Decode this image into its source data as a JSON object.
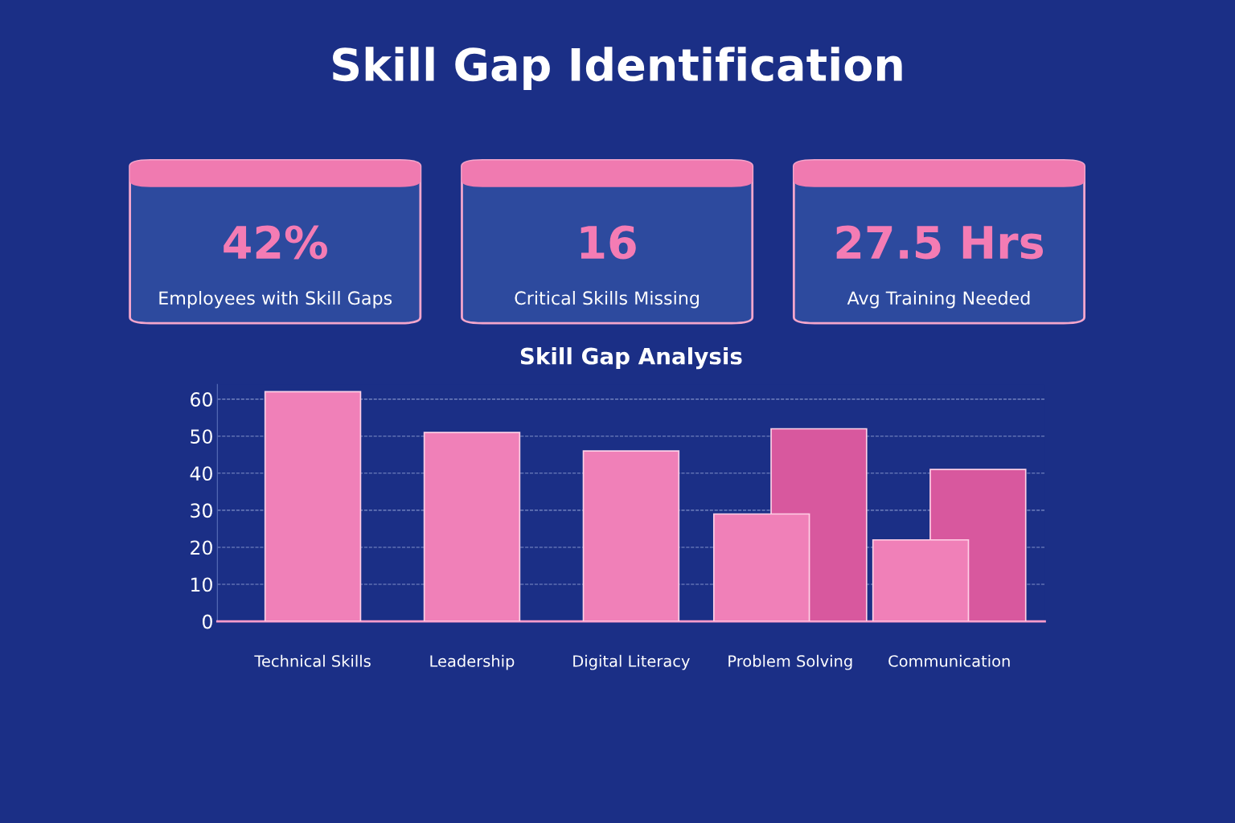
{
  "chart_data": [
    {
      "type": "other",
      "title": "Skill Gap Identification",
      "annotations": [
        "42%",
        "Employees with Skill Gaps",
        "16",
        "Critical Skills Missing",
        "27.5 Hrs",
        "Avg Training Needed"
      ]
    },
    {
      "type": "bar",
      "title": "Skill Gap Analysis",
      "categories": [
        "Technical Skills",
        "Leadership",
        "Digital Literacy",
        "Problem Solving",
        "Communication"
      ],
      "series": [
        {
          "color": "#f080b8",
          "values": [
            62,
            51,
            46,
            29,
            22
          ]
        },
        {
          "color": "#d8589e",
          "values": [
            null,
            null,
            null,
            52,
            41
          ]
        }
      ],
      "ylim": [
        0,
        64
      ],
      "yticks": [
        0,
        10,
        20,
        30,
        40,
        50,
        60
      ],
      "grid": "y"
    }
  ]
}
